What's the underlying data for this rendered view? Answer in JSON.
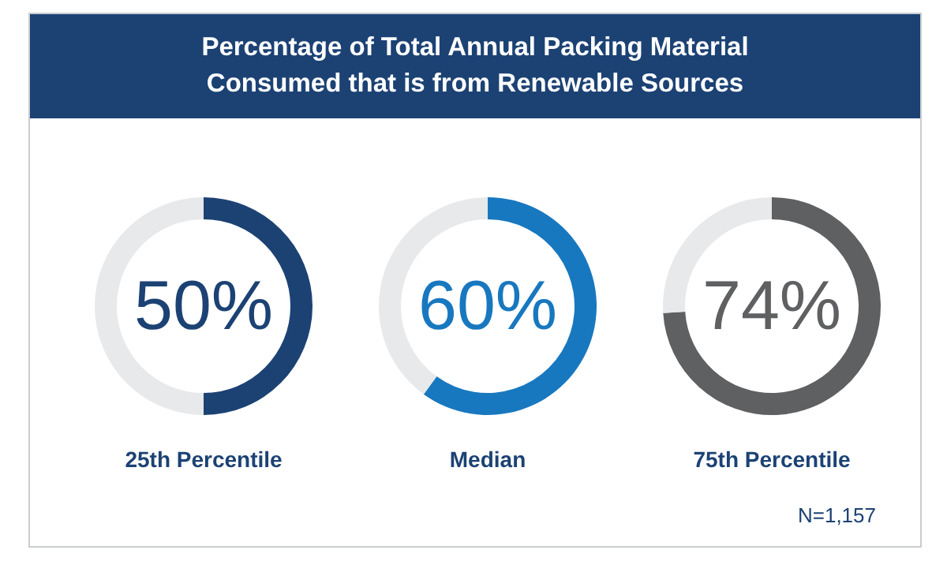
{
  "chart_data": [
    {
      "type": "donut",
      "title": "Percentage of Total Annual Packing Material Consumed that is from Renewable Sources",
      "xlabel": "25th Percentile",
      "categories": [
        null,
        null
      ],
      "values": [
        50,
        50
      ],
      "colors": [
        "#1c4274",
        "#e8e9ea"
      ],
      "annotations": [
        "50%"
      ]
    },
    {
      "type": "donut",
      "xlabel": "Median",
      "categories": [
        null,
        null
      ],
      "values": [
        60,
        40
      ],
      "colors": [
        "#1878bf",
        "#e8e9ea"
      ],
      "annotations": [
        "60%"
      ]
    },
    {
      "type": "donut",
      "xlabel": "75th Percentile",
      "categories": [
        null,
        null
      ],
      "values": [
        74,
        26
      ],
      "colors": [
        "#5f6062",
        "#e8e9ea"
      ],
      "annotations": [
        "74%",
        "N=1,157"
      ]
    }
  ]
}
